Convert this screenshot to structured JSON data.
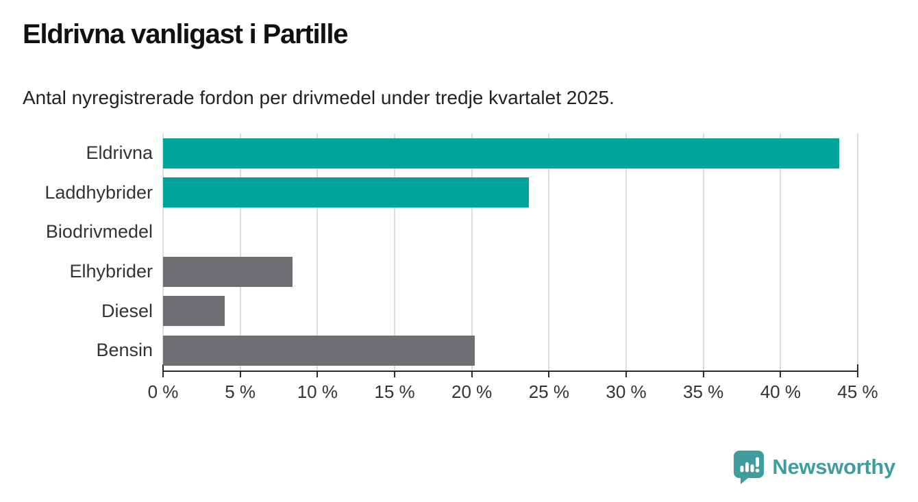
{
  "chart_data": {
    "type": "bar",
    "orientation": "horizontal",
    "title": "Eldrivna vanligast i Partille",
    "subtitle": "Antal nyregistrerade fordon per drivmedel under tredje kvartalet 2025.",
    "categories": [
      "Eldrivna",
      "Laddhybrider",
      "Biodrivmedel",
      "Elhybrider",
      "Diesel",
      "Bensin"
    ],
    "values": [
      43.8,
      23.7,
      0,
      8.4,
      4.0,
      20.2
    ],
    "unit": "%",
    "xlim": [
      0,
      45
    ],
    "x_ticks": [
      0,
      5,
      10,
      15,
      20,
      25,
      30,
      35,
      40,
      45
    ],
    "x_tick_labels": [
      "0 %",
      "5 %",
      "10 %",
      "15 %",
      "20 %",
      "25 %",
      "30 %",
      "35 %",
      "40 %",
      "45 %"
    ],
    "grid": true,
    "legend": "none",
    "bar_colors": [
      "#00a299",
      "#00a299",
      "#6e6e73",
      "#6e6e73",
      "#6e6e73",
      "#6e6e73"
    ],
    "colors": {
      "highlight": "#00a299",
      "default": "#6e6e73",
      "gridline": "#dcdcdc",
      "axis": "#2b2b2b"
    }
  },
  "footer": {
    "brand": "Newsworthy",
    "brand_color": "#3f9e9d",
    "icon": "newsworthy-speech-bubble-chart-icon"
  }
}
